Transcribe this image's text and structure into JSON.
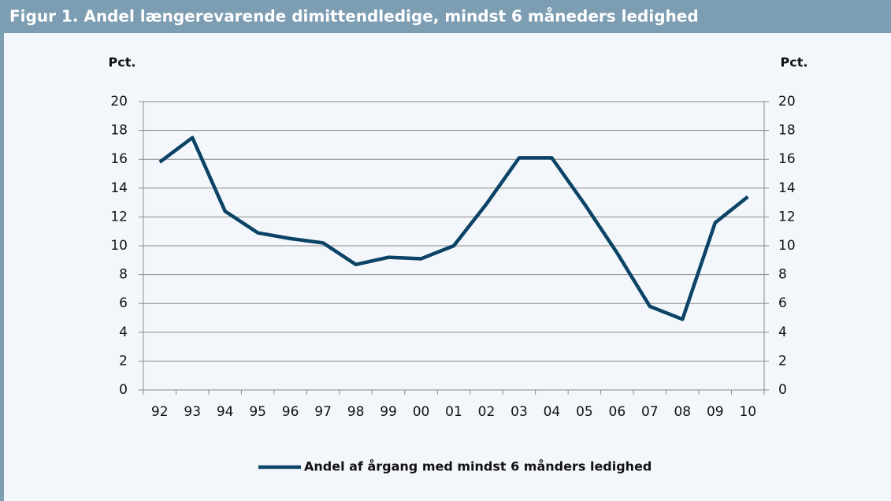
{
  "chart_data": {
    "type": "line",
    "title": "Figur 1. Andel længerevarende dimittendledige, mindst 6 måneders ledighed",
    "y_label": "Pct.",
    "y2_label": "Pct.",
    "categories": [
      "92",
      "93",
      "94",
      "95",
      "96",
      "97",
      "98",
      "99",
      "00",
      "01",
      "02",
      "03",
      "04",
      "05",
      "06",
      "07",
      "08",
      "09",
      "10"
    ],
    "series": [
      {
        "name": "Andel af årgang med mindst 6 månders ledighed",
        "color": "#0b4366",
        "values": [
          15.8,
          17.5,
          12.4,
          10.9,
          10.5,
          10.2,
          8.7,
          9.2,
          9.1,
          10.0,
          12.9,
          16.1,
          16.1,
          12.9,
          9.5,
          5.8,
          4.9,
          11.6,
          13.4
        ]
      }
    ],
    "ylim": [
      0,
      20
    ],
    "yticks": [
      0,
      2,
      4,
      6,
      8,
      10,
      12,
      14,
      16,
      18,
      20
    ],
    "y2lim": [
      0,
      20
    ],
    "y2ticks": [
      0,
      2,
      4,
      6,
      8,
      10,
      12,
      14,
      16,
      18,
      20
    ],
    "grid": true,
    "legend": "bottom"
  }
}
